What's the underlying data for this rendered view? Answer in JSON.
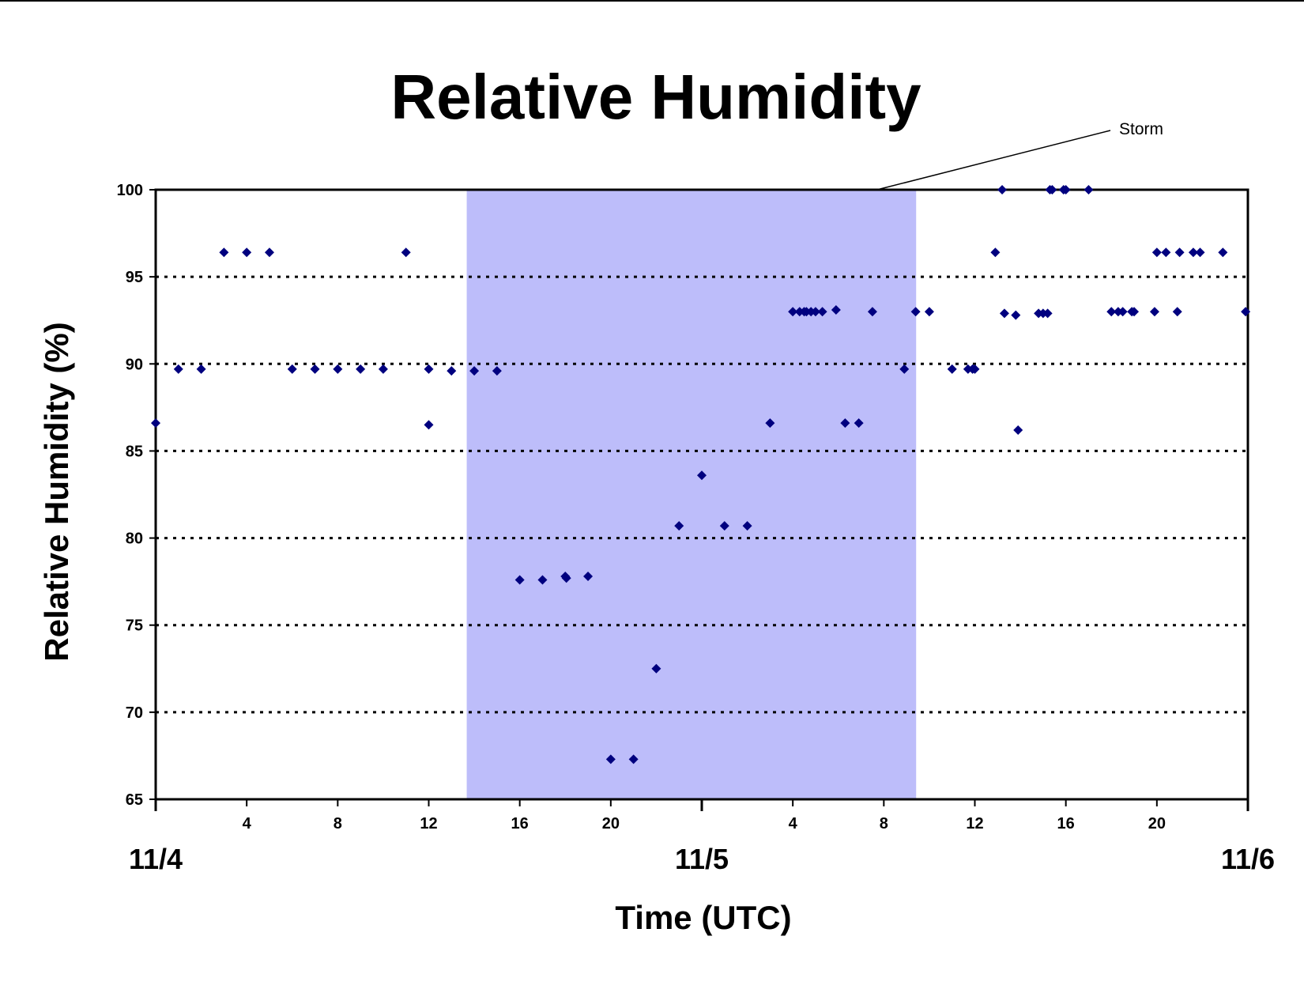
{
  "colors": {
    "marker": "#00007f",
    "storm_band": "#bdbdfa",
    "grid": "#000000",
    "axis": "#000000",
    "text": "#000000"
  },
  "chart_data": {
    "type": "scatter",
    "title": "Relative Humidity",
    "xlabel": "Time (UTC)",
    "ylabel": "Relative Humidity (%)",
    "x_unit": "hours since 11/4 00:00 UTC",
    "xlim": [
      0,
      48
    ],
    "ylim": [
      65,
      100
    ],
    "y_ticks": [
      65,
      70,
      75,
      80,
      85,
      90,
      95,
      100
    ],
    "grid": {
      "y_major": true,
      "style": "dotted",
      "values": [
        70,
        75,
        80,
        85,
        90,
        95
      ]
    },
    "x_hour_ticks": [
      {
        "x": 4,
        "label": "4"
      },
      {
        "x": 8,
        "label": "8"
      },
      {
        "x": 12,
        "label": "12"
      },
      {
        "x": 16,
        "label": "16"
      },
      {
        "x": 20,
        "label": "20"
      },
      {
        "x": 28,
        "label": "4"
      },
      {
        "x": 32,
        "label": "8"
      },
      {
        "x": 36,
        "label": "12"
      },
      {
        "x": 40,
        "label": "16"
      },
      {
        "x": 44,
        "label": "20"
      }
    ],
    "x_day_labels": [
      {
        "x": 0,
        "label": "11/4"
      },
      {
        "x": 24,
        "label": "11/5"
      },
      {
        "x": 48,
        "label": "11/6"
      }
    ],
    "annotations": [
      {
        "text": "Storm",
        "type": "shaded-region",
        "x_range": [
          13.67,
          33.42
        ],
        "leader_to": [
          31.7,
          100
        ]
      }
    ],
    "series": [
      {
        "name": "",
        "x": [
          0,
          1,
          2,
          3,
          4,
          5,
          6,
          7,
          8,
          9,
          10,
          11,
          12,
          12,
          13,
          14,
          15,
          16,
          17,
          18,
          18.05,
          19,
          20,
          21,
          22,
          23,
          24,
          25,
          26,
          27,
          28,
          28.3,
          28.5,
          28.6,
          28.8,
          29,
          29.3,
          29.9,
          30.3,
          30.9,
          31.5,
          32.9,
          33.4,
          34.0,
          35.0,
          35.7,
          35.9,
          36.0,
          36.9,
          37.2,
          37.3,
          37.8,
          37.9,
          38.8,
          39.0,
          39.2,
          39.3,
          39.4,
          39.9,
          40.0,
          41.0,
          42.0,
          42.3,
          42.5,
          42.9,
          43.0,
          43.9,
          44.0,
          44.4,
          44.9,
          45.0,
          45.6,
          45.9,
          46.9,
          47.9
        ],
        "y": [
          86.6,
          89.7,
          89.7,
          96.4,
          96.4,
          96.4,
          89.7,
          89.7,
          89.7,
          89.7,
          89.7,
          96.4,
          89.7,
          86.5,
          89.6,
          89.6,
          89.6,
          77.6,
          77.6,
          77.8,
          77.7,
          77.8,
          67.3,
          67.3,
          72.5,
          80.7,
          83.6,
          80.7,
          80.7,
          86.6,
          93.0,
          93.0,
          93.0,
          93.0,
          93.0,
          93.0,
          93.0,
          93.1,
          86.6,
          86.6,
          93.0,
          89.7,
          93.0,
          93.0,
          89.7,
          89.7,
          89.7,
          89.7,
          96.4,
          100,
          92.9,
          92.8,
          86.2,
          92.9,
          92.9,
          92.9,
          100,
          100,
          100,
          100,
          100,
          93.0,
          93.0,
          93.0,
          93.0,
          93.0,
          93.0,
          96.4,
          96.4,
          93.0,
          96.4,
          96.4,
          96.4,
          96.4,
          93.0
        ]
      }
    ]
  }
}
